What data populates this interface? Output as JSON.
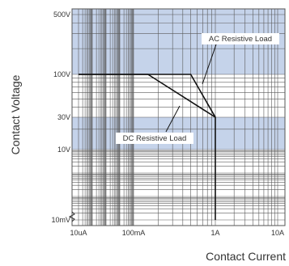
{
  "chart_data": {
    "type": "line",
    "xlabel": "Contact Current",
    "ylabel": "Contact Voltage",
    "x_scale": "log",
    "y_scale": "log",
    "grid": true,
    "y_ticks": [
      {
        "label": "500V",
        "value": 500
      },
      {
        "label": "100V",
        "value": 100
      },
      {
        "label": "30V",
        "value": 30
      },
      {
        "label": "10V",
        "value": 10
      },
      {
        "label": "10mV",
        "value": 0.01
      }
    ],
    "x_ticks": [
      {
        "label": "10uA",
        "value": 1e-05
      },
      {
        "label": "100mA",
        "value": 0.1
      },
      {
        "label": "1A",
        "value": 1
      },
      {
        "label": "10A",
        "value": 10
      }
    ],
    "series": [
      {
        "name": "AC Resistive Load",
        "points": [
          [
            1e-05,
            100
          ],
          [
            0.5,
            100
          ],
          [
            1,
            30
          ],
          [
            1,
            0.01
          ]
        ]
      },
      {
        "name": "DC Resistive Load",
        "points": [
          [
            1e-05,
            100
          ],
          [
            0.15,
            100
          ],
          [
            1,
            30
          ]
        ]
      }
    ],
    "annotations": [
      {
        "text": "AC Resistive Load",
        "series": "AC Resistive Load"
      },
      {
        "text": "DC Resistive Load",
        "series": "DC Resistive Load"
      }
    ],
    "band_color": "#c5d3ea",
    "line_color": "#111111"
  }
}
